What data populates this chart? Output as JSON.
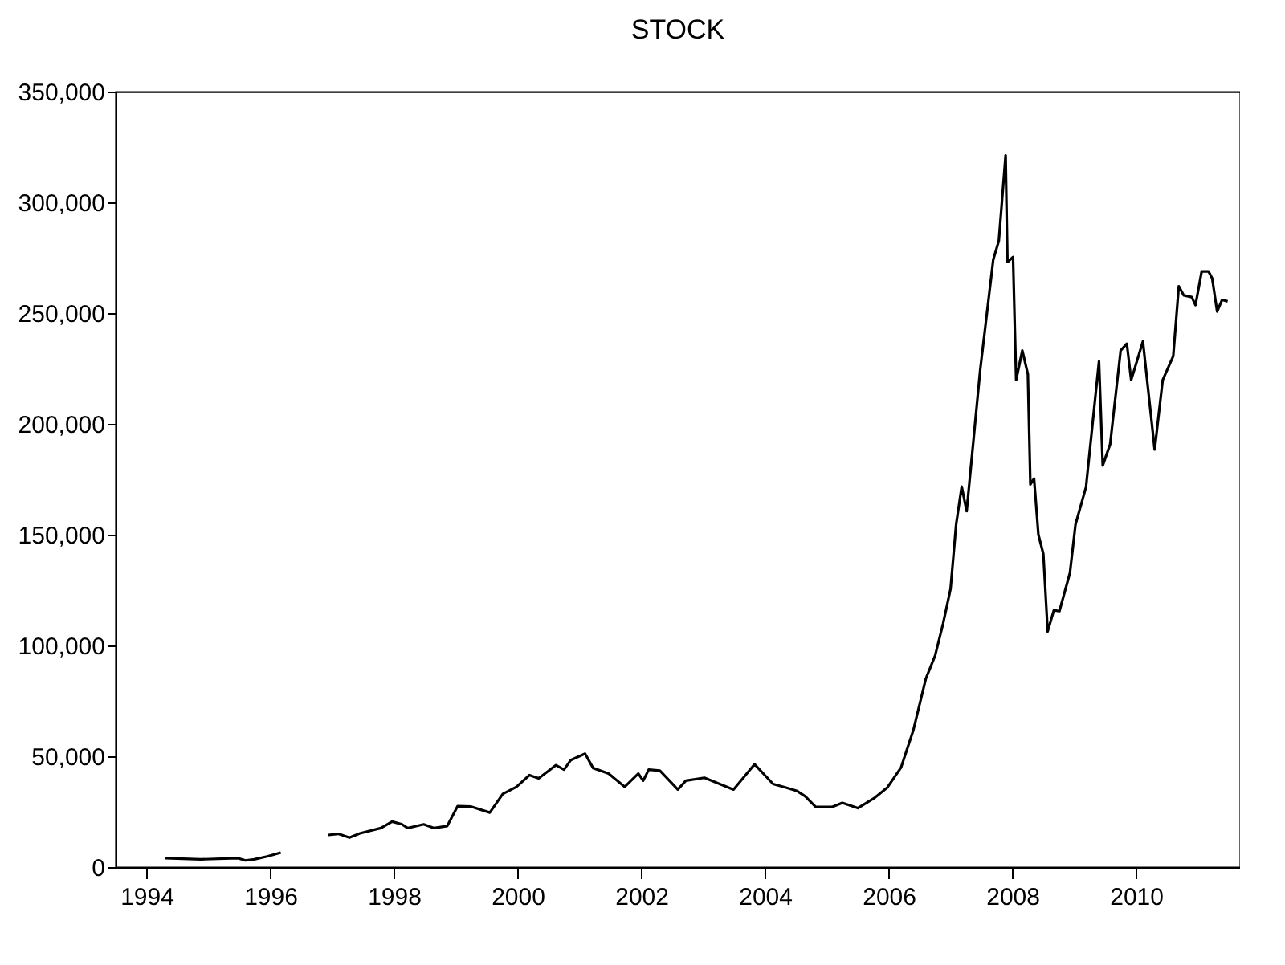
{
  "chart_data": {
    "type": "line",
    "title": "STOCK",
    "x": [
      1994.3,
      1994.88,
      1995.48,
      1995.6,
      1995.74,
      1995.95,
      1996.17,
      1996.5,
      1996.94,
      1997.1,
      1997.28,
      1997.45,
      1997.79,
      1997.97,
      1998.13,
      1998.22,
      1998.48,
      1998.65,
      1998.86,
      1999.03,
      1999.25,
      1999.55,
      1999.76,
      1999.98,
      2000.19,
      2000.34,
      2000.62,
      2000.75,
      2000.86,
      2001.09,
      2001.22,
      2001.47,
      2001.73,
      2001.95,
      2002.03,
      2002.12,
      2002.3,
      2002.59,
      2002.72,
      2003.02,
      2003.49,
      2003.83,
      2004.13,
      2004.35,
      2004.52,
      2004.65,
      2004.82,
      2005.08,
      2005.25,
      2005.5,
      2005.76,
      2005.98,
      2006.2,
      2006.4,
      2006.6,
      2006.75,
      2006.88,
      2007.0,
      2007.09,
      2007.18,
      2007.26,
      2007.48,
      2007.69,
      2007.78,
      2007.89,
      2007.92,
      2008.01,
      2008.06,
      2008.16,
      2008.25,
      2008.29,
      2008.35,
      2008.42,
      2008.5,
      2008.57,
      2008.67,
      2008.76,
      2008.93,
      2009.02,
      2009.19,
      2009.4,
      2009.46,
      2009.58,
      2009.75,
      2009.85,
      2009.92,
      2010.11,
      2010.3,
      2010.43,
      2010.6,
      2010.69,
      2010.77,
      2010.9,
      2010.96,
      2011.06,
      2011.17,
      2011.23,
      2011.31,
      2011.39,
      2011.48
    ],
    "series": [
      {
        "color": "#000000",
        "values": [
          4000,
          3500,
          4000,
          3000,
          3500,
          4800,
          6500,
          null,
          14500,
          15000,
          13300,
          15200,
          17600,
          20500,
          19300,
          17600,
          19300,
          17600,
          18500,
          27500,
          27300,
          24600,
          33000,
          36200,
          41500,
          40000,
          46000,
          44000,
          48300,
          51200,
          44700,
          42200,
          36200,
          42200,
          39000,
          44000,
          43500,
          35000,
          39000,
          40300,
          35000,
          46400,
          37500,
          35800,
          34300,
          31900,
          27100,
          27100,
          29000,
          26600,
          31000,
          36000,
          45000,
          62000,
          85000,
          95400,
          110000,
          125600,
          154600,
          171700,
          160600,
          224600,
          274100,
          282600,
          321200,
          273000,
          275300,
          219800,
          233100,
          222400,
          172700,
          175300,
          150000,
          141300,
          106300,
          115900,
          115500,
          132800,
          154600,
          171500,
          228200,
          181200,
          190800,
          233100,
          236200,
          219800,
          237200,
          188400,
          219800,
          230600,
          262100,
          258000,
          257200,
          253600,
          268800,
          268800,
          265700,
          250700,
          256000,
          255300
        ]
      }
    ],
    "xlim": [
      1993.5,
      2011.68
    ],
    "xticks": [
      1994,
      1996,
      1998,
      2000,
      2002,
      2004,
      2006,
      2008,
      2010
    ],
    "ylim": [
      0,
      350000
    ],
    "yticks": [
      {
        "value": 0,
        "label": "0"
      },
      {
        "value": 50000,
        "label": "50,000"
      },
      {
        "value": 100000,
        "label": "100,000"
      },
      {
        "value": 150000,
        "label": "150,000"
      },
      {
        "value": 200000,
        "label": "200,000"
      },
      {
        "value": 250000,
        "label": "250,000"
      },
      {
        "value": 300000,
        "label": "300,000"
      },
      {
        "value": 350000,
        "label": "350,000"
      }
    ],
    "grid": false,
    "marker": "none",
    "line_style": "solid"
  }
}
